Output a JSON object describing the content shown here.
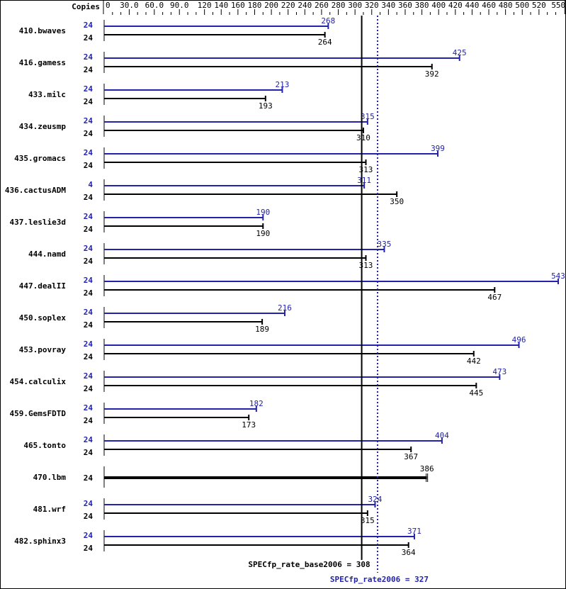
{
  "chart_data": {
    "type": "bar",
    "orientation": "horizontal",
    "axis_label": "Copies",
    "xlim": [
      0,
      550
    ],
    "tick_labels": [
      "0",
      "30.0",
      "60.0",
      "90.0",
      "120",
      "140",
      "160",
      "180",
      "200",
      "220",
      "240",
      "260",
      "280",
      "300",
      "320",
      "340",
      "360",
      "380",
      "400",
      "420",
      "440",
      "460",
      "480",
      "500",
      "520",
      "550"
    ],
    "tick_values": [
      0,
      30,
      60,
      90,
      120,
      140,
      160,
      180,
      200,
      220,
      240,
      260,
      280,
      300,
      320,
      340,
      360,
      380,
      400,
      420,
      440,
      460,
      480,
      500,
      520,
      550
    ],
    "colors": {
      "peak": "#2222aa",
      "base": "#000000"
    },
    "benchmarks": [
      {
        "name": "410.bwaves",
        "peak_copies": "24",
        "peak": 268,
        "base_copies": "24",
        "base": 264
      },
      {
        "name": "416.gamess",
        "peak_copies": "24",
        "peak": 425,
        "base_copies": "24",
        "base": 392
      },
      {
        "name": "433.milc",
        "peak_copies": "24",
        "peak": 213,
        "base_copies": "24",
        "base": 193
      },
      {
        "name": "434.zeusmp",
        "peak_copies": "24",
        "peak": 315,
        "base_copies": "24",
        "base": 310
      },
      {
        "name": "435.gromacs",
        "peak_copies": "24",
        "peak": 399,
        "base_copies": "24",
        "base": 313
      },
      {
        "name": "436.cactusADM",
        "peak_copies": "4",
        "peak": 311,
        "base_copies": "24",
        "base": 350
      },
      {
        "name": "437.leslie3d",
        "peak_copies": "24",
        "peak": 190,
        "base_copies": "24",
        "base": 190
      },
      {
        "name": "444.namd",
        "peak_copies": "24",
        "peak": 335,
        "base_copies": "24",
        "base": 313
      },
      {
        "name": "447.dealII",
        "peak_copies": "24",
        "peak": 543,
        "base_copies": "24",
        "base": 467
      },
      {
        "name": "450.soplex",
        "peak_copies": "24",
        "peak": 216,
        "base_copies": "24",
        "base": 189
      },
      {
        "name": "453.povray",
        "peak_copies": "24",
        "peak": 496,
        "base_copies": "24",
        "base": 442
      },
      {
        "name": "454.calculix",
        "peak_copies": "24",
        "peak": 473,
        "base_copies": "24",
        "base": 445
      },
      {
        "name": "459.GemsFDTD",
        "peak_copies": "24",
        "peak": 182,
        "base_copies": "24",
        "base": 173
      },
      {
        "name": "465.tonto",
        "peak_copies": "24",
        "peak": 404,
        "base_copies": "24",
        "base": 367
      },
      {
        "name": "470.lbm",
        "peak_copies": null,
        "peak": null,
        "base_copies": "24",
        "base": 386
      },
      {
        "name": "481.wrf",
        "peak_copies": "24",
        "peak": 324,
        "base_copies": "24",
        "base": 315
      },
      {
        "name": "482.sphinx3",
        "peak_copies": "24",
        "peak": 371,
        "base_copies": "24",
        "base": 364
      }
    ],
    "summary": {
      "base_label": "SPECfp_rate_base2006 = 308",
      "base_value": 308,
      "peak_label": "SPECfp_rate2006 = 327",
      "peak_value": 327
    }
  }
}
